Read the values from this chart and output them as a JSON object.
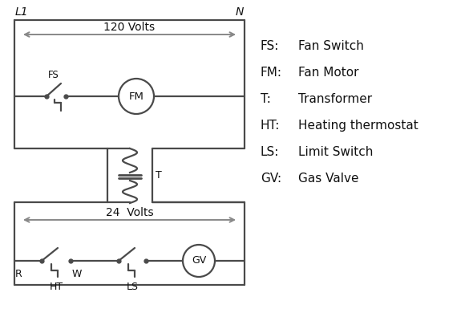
{
  "bg_color": "#ffffff",
  "line_color": "#4a4a4a",
  "arrow_color": "#888888",
  "text_color": "#111111",
  "legend": [
    [
      "FS:",
      "Fan Switch"
    ],
    [
      "FM:",
      "Fan Motor"
    ],
    [
      "T:",
      "Transformer"
    ],
    [
      "HT:",
      "Heating thermostat"
    ],
    [
      "LS:",
      "Limit Switch"
    ],
    [
      "GV:",
      "Gas Valve"
    ]
  ],
  "L1_label": "L1",
  "N_label": "N",
  "volts120_label": "120 Volts",
  "volts24_label": "24  Volts",
  "T_label": "T",
  "R_label": "R",
  "W_label": "W",
  "HT_label": "HT",
  "LS_label": "LS",
  "FS_label": "FS",
  "FM_label": "FM",
  "GV_label": "GV"
}
